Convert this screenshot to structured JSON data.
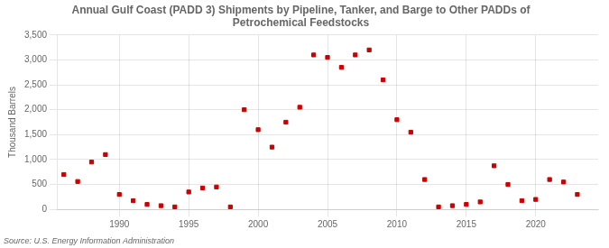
{
  "chart_data": {
    "type": "scatter",
    "title": "Annual Gulf Coast (PADD 3) Shipments by Pipeline, Tanker, and Barge to Other PADDs of\nPetrochemical Feedstocks",
    "ylabel": "Thousand Barrels",
    "source": "Source: U.S. Energy Information Administration",
    "color": "#cc0000",
    "marker": "square",
    "x": [
      1986,
      1987,
      1988,
      1989,
      1990,
      1991,
      1992,
      1993,
      1994,
      1995,
      1996,
      1997,
      1998,
      1999,
      2000,
      2001,
      2002,
      2003,
      2004,
      2005,
      2006,
      2007,
      2008,
      2009,
      2010,
      2011,
      2012,
      2013,
      2014,
      2015,
      2016,
      2017,
      2018,
      2019,
      2020,
      2021,
      2022,
      2023
    ],
    "values": [
      700,
      560,
      950,
      1100,
      300,
      175,
      100,
      75,
      50,
      350,
      430,
      450,
      50,
      2000,
      1600,
      1250,
      1750,
      2050,
      3100,
      3050,
      2850,
      3100,
      3200,
      2600,
      1800,
      1550,
      600,
      50,
      75,
      100,
      150,
      875,
      500,
      175,
      200,
      600,
      550,
      300
    ],
    "xlim": [
      1985.5,
      2024.5
    ],
    "xticks": [
      1990,
      1995,
      2000,
      2005,
      2010,
      2015,
      2020
    ],
    "ylim": [
      0,
      3500
    ],
    "yticks": [
      0,
      500,
      {
        "value": 1000,
        "label": "1,000"
      },
      {
        "value": 1500,
        "label": "1,500"
      },
      {
        "value": 2000,
        "label": "2,000"
      },
      {
        "value": 2500,
        "label": "2,500"
      },
      {
        "value": 3000,
        "label": "3,000"
      },
      {
        "value": 3500,
        "label": "3,500"
      }
    ],
    "grid": true
  }
}
